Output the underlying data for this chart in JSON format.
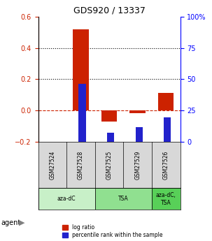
{
  "title": "GDS920 / 13337",
  "samples": [
    "GSM27524",
    "GSM27528",
    "GSM27525",
    "GSM27529",
    "GSM27526"
  ],
  "log_ratios": [
    0.0,
    0.52,
    -0.07,
    -0.02,
    0.11
  ],
  "percentile_ranks": [
    0.0,
    0.465,
    0.07,
    0.115,
    0.195
  ],
  "agents": [
    {
      "label": "aza-dC",
      "span": [
        0,
        2
      ],
      "color": "#c8f0c8"
    },
    {
      "label": "TSA",
      "span": [
        2,
        4
      ],
      "color": "#90e090"
    },
    {
      "label": "aza-dC,\nTSA",
      "span": [
        4,
        5
      ],
      "color": "#58d058"
    }
  ],
  "bar_color_red": "#cc2200",
  "bar_color_blue": "#2222cc",
  "ylim_left": [
    -0.2,
    0.6
  ],
  "ylim_right": [
    0,
    100
  ],
  "yticks_left": [
    -0.2,
    0.0,
    0.2,
    0.4,
    0.6
  ],
  "yticks_right": [
    0,
    25,
    50,
    75,
    100
  ],
  "hline_y": 0.0,
  "dotted_lines": [
    0.2,
    0.4
  ],
  "bar_width": 0.55,
  "blue_bar_width": 0.25,
  "background_color": "#ffffff"
}
